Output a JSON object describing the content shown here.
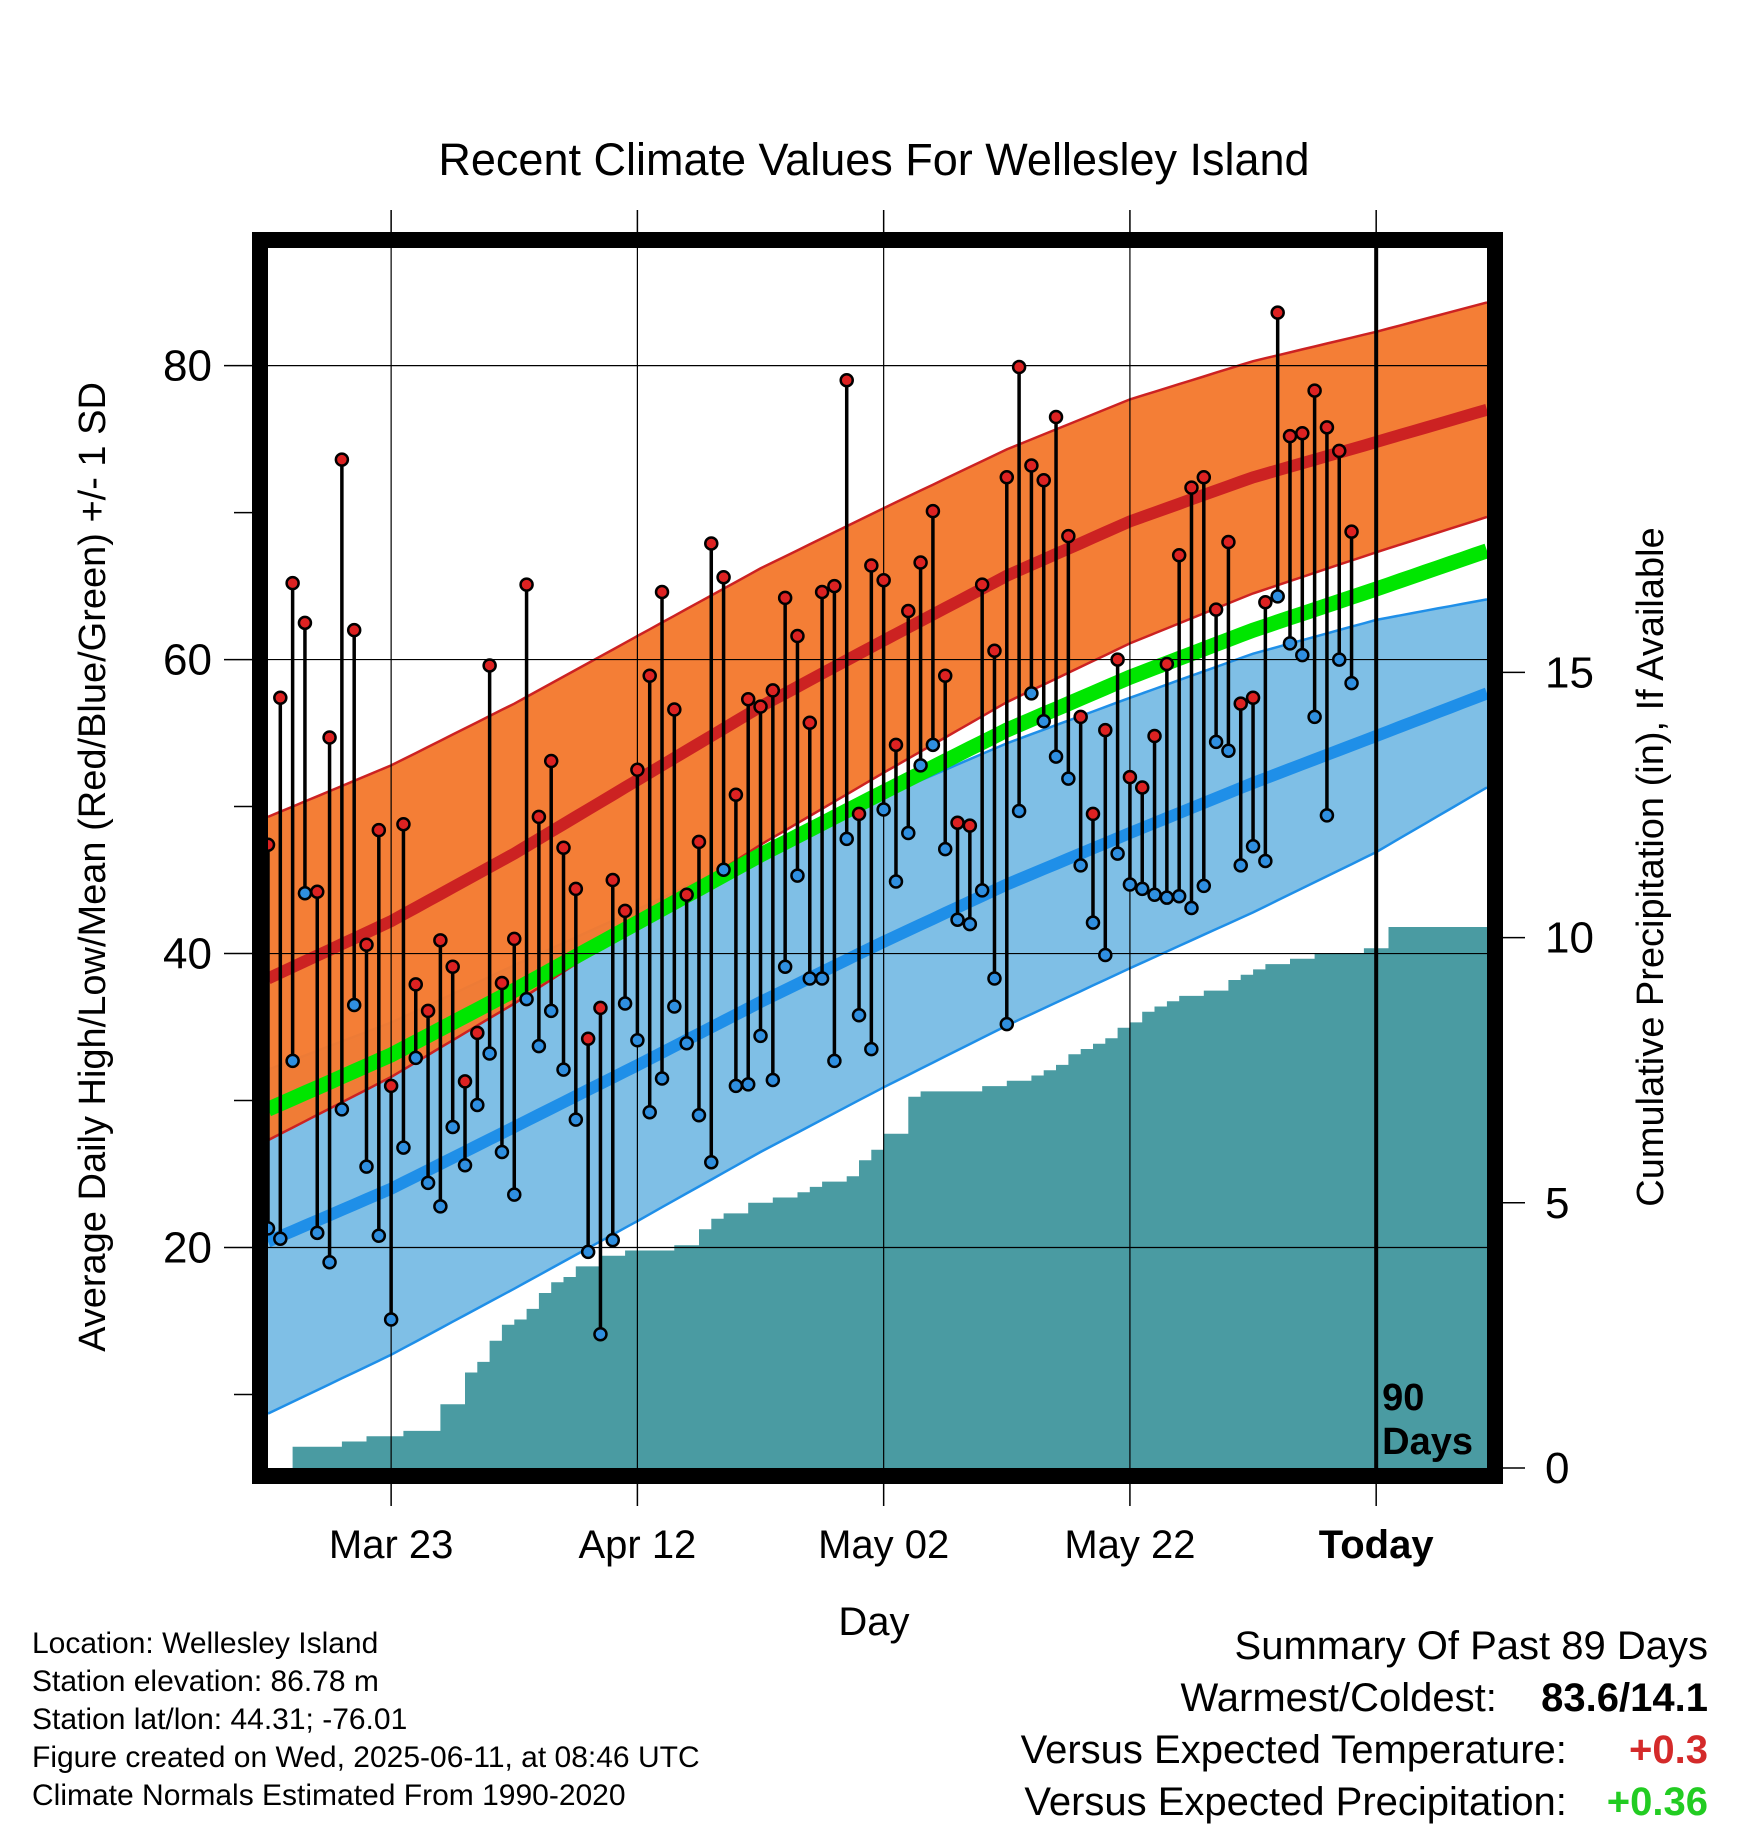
{
  "chart_data": {
    "type": "line",
    "title": "Recent Climate Values For Wellesley Island",
    "xlabel": "Day",
    "ylabel": "Average Daily High/Low/Mean (Red/Blue/Green) +/- 1 SD",
    "y2label": "Cumulative Precipitation (in), If Available",
    "ylim": [
      5,
      88
    ],
    "y2lim": [
      0,
      23
    ],
    "y_ticks": [
      "20",
      "40",
      "60",
      "80"
    ],
    "y2_ticks": [
      "0",
      "5",
      "10",
      "15"
    ],
    "x_range_days_before_today": [
      -90,
      9
    ],
    "x_tick_labels": [
      {
        "day": -80,
        "label": "Mar 23"
      },
      {
        "day": -60,
        "label": "Apr 12"
      },
      {
        "day": -40,
        "label": "May 02"
      },
      {
        "day": -20,
        "label": "May 22"
      },
      {
        "day": 0,
        "label": "Today"
      }
    ],
    "today_marker_label": [
      "90",
      "Days"
    ],
    "grid": true,
    "colors": {
      "high_band": "#f47a30",
      "high_line": "#cc2222",
      "low_band": "#7fbfe6",
      "low_line": "#1f8fe8",
      "mean_line": "#00e600",
      "precip": "#4a9ba2",
      "high_marker": "#dd2222",
      "low_marker": "#2f8fe0"
    },
    "normals": {
      "days": [
        -90,
        -80,
        -70,
        -60,
        -50,
        -40,
        -30,
        -20,
        -10,
        0,
        9
      ],
      "high_mean": [
        38.3,
        42.2,
        46.8,
        51.8,
        56.8,
        61.3,
        65.7,
        69.4,
        72.4,
        74.8,
        77.0
      ],
      "high_sd": [
        11.0,
        10.6,
        10.2,
        9.8,
        9.4,
        9.0,
        8.6,
        8.3,
        7.9,
        7.5,
        7.3
      ],
      "low_mean": [
        20.4,
        24.0,
        28.2,
        32.4,
        36.7,
        40.8,
        44.7,
        48.2,
        51.6,
        54.8,
        57.7
      ],
      "low_sd": [
        11.7,
        11.3,
        11.0,
        10.6,
        10.2,
        9.9,
        9.6,
        9.2,
        8.8,
        7.9,
        6.4
      ],
      "mean": [
        29.4,
        33.1,
        37.5,
        42.1,
        46.7,
        51.0,
        55.2,
        58.8,
        62.0,
        64.8,
        67.4
      ]
    },
    "daily_high": [
      47.4,
      57.4,
      65.2,
      62.5,
      44.2,
      54.7,
      73.6,
      62.0,
      40.6,
      48.4,
      31.0,
      48.8,
      37.9,
      36.1,
      40.9,
      39.1,
      31.3,
      34.6,
      59.6,
      38.0,
      41.0,
      65.1,
      49.3,
      53.1,
      47.2,
      44.4,
      34.2,
      36.3,
      45.0,
      42.9,
      52.5,
      58.9,
      64.6,
      56.6,
      44.0,
      47.6,
      67.9,
      65.6,
      50.8,
      57.3,
      56.8,
      57.9,
      64.2,
      61.6,
      55.7,
      64.6,
      65.0,
      79.0,
      49.5,
      66.4,
      65.4,
      54.2,
      63.3,
      66.6,
      70.1,
      58.9,
      48.9,
      48.7,
      65.1,
      60.6,
      72.4,
      79.9,
      73.2,
      72.2,
      76.5,
      68.4,
      56.1,
      49.5,
      55.2,
      60.0,
      52.0,
      51.3,
      54.8,
      59.7,
      67.1,
      71.7,
      72.4,
      63.4,
      68.0,
      57.0,
      57.4,
      63.9,
      83.6,
      75.2,
      75.4,
      78.3,
      75.8,
      74.2,
      68.7
    ],
    "daily_low": [
      21.3,
      20.6,
      32.7,
      44.1,
      21.0,
      19.0,
      29.4,
      36.5,
      25.5,
      20.8,
      15.1,
      26.8,
      32.9,
      24.4,
      22.8,
      28.2,
      25.6,
      29.7,
      33.2,
      26.5,
      23.6,
      36.9,
      33.7,
      36.1,
      32.1,
      28.7,
      19.7,
      14.1,
      20.5,
      36.6,
      34.1,
      29.2,
      31.5,
      36.4,
      33.9,
      29.0,
      25.8,
      45.7,
      31.0,
      31.1,
      34.4,
      31.4,
      39.1,
      45.3,
      38.3,
      38.3,
      32.7,
      47.8,
      35.8,
      33.5,
      49.8,
      44.9,
      48.2,
      52.8,
      54.2,
      47.1,
      42.3,
      42.0,
      44.3,
      38.3,
      35.2,
      49.7,
      57.7,
      55.8,
      53.4,
      51.9,
      46.0,
      42.1,
      39.9,
      46.8,
      44.7,
      44.4,
      44.0,
      43.8,
      43.9,
      43.1,
      44.6,
      54.4,
      53.8,
      46.0,
      47.3,
      46.3,
      64.3,
      61.1,
      60.3,
      56.1,
      49.4,
      60.0,
      58.4
    ],
    "precip_cumulative": {
      "days": [
        -88,
        -84,
        -82,
        -79,
        -76,
        -74,
        -73,
        -72,
        -71,
        -70,
        -69,
        -68,
        -67,
        -66,
        -65,
        -63,
        -61,
        -59,
        -57,
        -55,
        -54,
        -53,
        -51,
        -49,
        -47,
        -46,
        -45,
        -44,
        -43,
        -42,
        -41,
        -40,
        -38,
        -37,
        -36,
        -35,
        -32,
        -30,
        -28,
        -27,
        -26,
        -25,
        -24,
        -23,
        -22,
        -21,
        -20,
        -19,
        -18,
        -17,
        -16,
        -15,
        -14,
        -12,
        -11,
        -10,
        -9,
        -7,
        -6,
        -5,
        -4,
        -3,
        -2,
        -1,
        1,
        9
      ],
      "values": [
        0.4,
        0.5,
        0.6,
        0.7,
        1.2,
        1.8,
        2.0,
        2.4,
        2.7,
        2.8,
        3.0,
        3.3,
        3.5,
        3.6,
        3.8,
        4.0,
        4.1,
        4.1,
        4.2,
        4.5,
        4.7,
        4.8,
        5.0,
        5.1,
        5.2,
        5.3,
        5.4,
        5.4,
        5.5,
        5.8,
        6.0,
        6.3,
        7.0,
        7.1,
        7.1,
        7.1,
        7.2,
        7.3,
        7.4,
        7.5,
        7.6,
        7.8,
        7.9,
        8.0,
        8.1,
        8.3,
        8.4,
        8.6,
        8.7,
        8.8,
        8.9,
        8.9,
        9.0,
        9.2,
        9.3,
        9.4,
        9.5,
        9.6,
        9.6,
        9.7,
        9.7,
        9.7,
        9.7,
        9.8,
        10.2,
        10.2
      ]
    }
  },
  "info": {
    "location": "Location: Wellesley Island",
    "elevation": "Station elevation: 86.78 m",
    "latlon": "Station lat/lon: 44.31; -76.01",
    "created": "Figure created on Wed, 2025-06-11, at 08:46 UTC",
    "normals": "Climate Normals Estimated From 1990-2020"
  },
  "summary": {
    "heading": "Summary Of Past 89 Days",
    "warm_cold_label": "Warmest/Coldest:",
    "warm_cold_value": "83.6/14.1",
    "temp_label": "Versus Expected Temperature:",
    "temp_value": "+0.3",
    "precip_label": "Versus Expected Precipitation:",
    "precip_value": "+0.36"
  }
}
